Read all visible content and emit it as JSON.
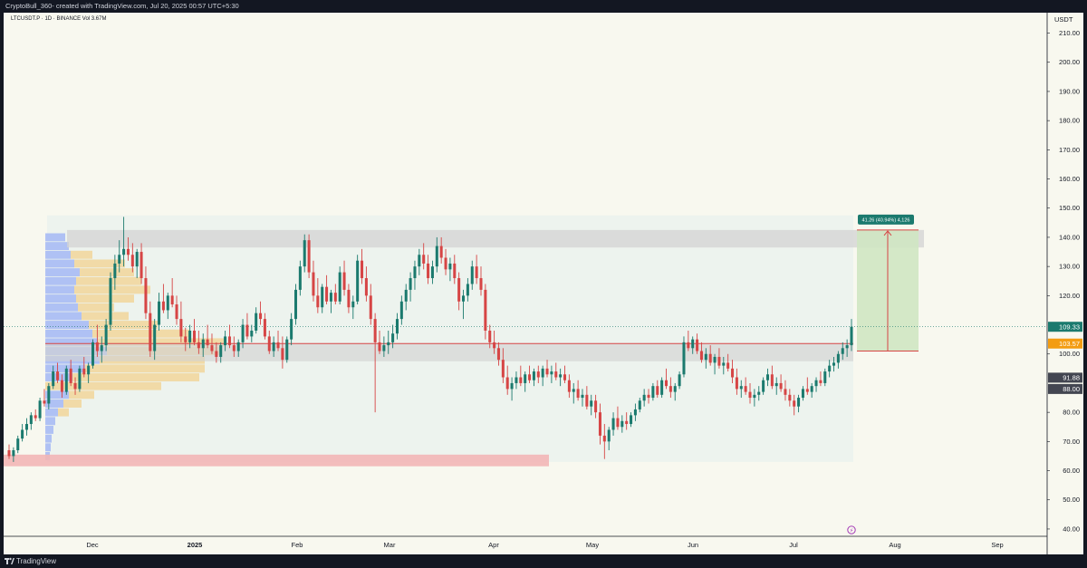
{
  "header": {
    "text": "CryptoBull_360- created with TradingView.com, Jul 20, 2025 00:57 UTC+5:30"
  },
  "footer": {
    "brand": "TradingView"
  },
  "symbol_line": "LTCUSDT.P · 1D · BINANCE  Vol 3.67M",
  "colors": {
    "up": "#1b7a6e",
    "down": "#d64545",
    "profile_blue": "#9fb4f5",
    "profile_orange": "#f2d28f",
    "target_green": "#cfe6c2",
    "support_band": "#d3d3d3",
    "bottom_band": "#f2b6b6",
    "price_tag_green": "#1b7a6e",
    "price_tag_orange": "#f39c12",
    "price_tag_gray": "#434651"
  },
  "icons": {
    "alert": "lightning-bolt-icon"
  },
  "chart_data": {
    "type": "candlestick",
    "currency_label": "USDT",
    "y_ticks": [
      40,
      50,
      60,
      70,
      80,
      90,
      100,
      110,
      120,
      130,
      140,
      150,
      160,
      170,
      180,
      190,
      200,
      210
    ],
    "y_tick_labels": [
      "40.00",
      "50.00",
      "60.00",
      "70.00",
      "80.00",
      "",
      "100.00",
      "",
      "120.00",
      "130.00",
      "140.00",
      "150.00",
      "160.00",
      "170.00",
      "180.00",
      "190.00",
      "200.00",
      "210.00"
    ],
    "ylim": [
      37.5,
      217
    ],
    "x_labels": [
      "Dec",
      "2025",
      "Feb",
      "Mar",
      "Apr",
      "May",
      "Jun",
      "Jul",
      "Aug",
      "Sep"
    ],
    "price_tags": [
      {
        "label": "109.33",
        "value": 109.33,
        "color": "green"
      },
      {
        "label": "103.57",
        "value": 103.57,
        "color": "orange"
      },
      {
        "label": "91.88",
        "value": 91.88,
        "color": "gray"
      },
      {
        "label": "88.00",
        "value": 88.0,
        "color": "gray"
      }
    ],
    "measure_label": "41.26 (40.94%) 4,126",
    "zones": {
      "resistance": [
        136.5,
        142.5
      ],
      "support": [
        97.5,
        103.5
      ],
      "bottom": [
        61.5,
        65.5
      ],
      "target": [
        101.0,
        142.5
      ],
      "range_box": [
        63.0,
        147.5
      ]
    },
    "current_price": 109.33,
    "horizontal_line": 103.57,
    "candles": [
      [
        67,
        69,
        64,
        65
      ],
      [
        65,
        68,
        63,
        67
      ],
      [
        67,
        72,
        66,
        71
      ],
      [
        71,
        76,
        70,
        74
      ],
      [
        74,
        78,
        72,
        76
      ],
      [
        76,
        80,
        74,
        79
      ],
      [
        79,
        81,
        77,
        78
      ],
      [
        78,
        85,
        77,
        84
      ],
      [
        84,
        88,
        82,
        83
      ],
      [
        83,
        90,
        81,
        89
      ],
      [
        89,
        96,
        88,
        94
      ],
      [
        94,
        97,
        90,
        91
      ],
      [
        91,
        93,
        85,
        87
      ],
      [
        87,
        96,
        86,
        95
      ],
      [
        95,
        98,
        89,
        90
      ],
      [
        90,
        92,
        86,
        88
      ],
      [
        88,
        96,
        87,
        95
      ],
      [
        95,
        99,
        92,
        93
      ],
      [
        93,
        97,
        90,
        96
      ],
      [
        96,
        105,
        95,
        104
      ],
      [
        104,
        110,
        99,
        101
      ],
      [
        101,
        106,
        97,
        103
      ],
      [
        103,
        112,
        101,
        110
      ],
      [
        110,
        128,
        108,
        126
      ],
      [
        126,
        134,
        122,
        131
      ],
      [
        131,
        139,
        128,
        134
      ],
      [
        134,
        147,
        130,
        136
      ],
      [
        136,
        140,
        132,
        134
      ],
      [
        134,
        138,
        128,
        130
      ],
      [
        130,
        136,
        126,
        135
      ],
      [
        135,
        138,
        124,
        126
      ],
      [
        126,
        130,
        112,
        114
      ],
      [
        114,
        118,
        99,
        101
      ],
      [
        101,
        112,
        98,
        110
      ],
      [
        110,
        121,
        108,
        118
      ],
      [
        118,
        124,
        114,
        115
      ],
      [
        115,
        121,
        112,
        120
      ],
      [
        120,
        126,
        116,
        117
      ],
      [
        117,
        120,
        110,
        112
      ],
      [
        112,
        118,
        104,
        106
      ],
      [
        106,
        109,
        101,
        104
      ],
      [
        104,
        110,
        102,
        108
      ],
      [
        108,
        112,
        103,
        104
      ],
      [
        104,
        108,
        100,
        102
      ],
      [
        102,
        107,
        99,
        105
      ],
      [
        105,
        110,
        102,
        103
      ],
      [
        103,
        107,
        100,
        101
      ],
      [
        101,
        104,
        97,
        99
      ],
      [
        99,
        104,
        97,
        103
      ],
      [
        103,
        108,
        101,
        106
      ],
      [
        106,
        110,
        102,
        103
      ],
      [
        103,
        106,
        99,
        101
      ],
      [
        101,
        105,
        99,
        104
      ],
      [
        104,
        112,
        102,
        110
      ],
      [
        110,
        114,
        105,
        106
      ],
      [
        106,
        110,
        104,
        108
      ],
      [
        108,
        116,
        107,
        114
      ],
      [
        114,
        118,
        110,
        112
      ],
      [
        112,
        114,
        105,
        106
      ],
      [
        106,
        108,
        100,
        101
      ],
      [
        101,
        106,
        99,
        104
      ],
      [
        104,
        108,
        101,
        102
      ],
      [
        102,
        106,
        95,
        98
      ],
      [
        98,
        106,
        97,
        105
      ],
      [
        105,
        114,
        103,
        112
      ],
      [
        112,
        124,
        110,
        122
      ],
      [
        122,
        132,
        120,
        130
      ],
      [
        130,
        141,
        128,
        139
      ],
      [
        139,
        141,
        126,
        128
      ],
      [
        128,
        132,
        118,
        120
      ],
      [
        120,
        126,
        114,
        116
      ],
      [
        116,
        124,
        114,
        123
      ],
      [
        123,
        127,
        117,
        118
      ],
      [
        118,
        122,
        114,
        121
      ],
      [
        121,
        124,
        117,
        118
      ],
      [
        118,
        130,
        117,
        128
      ],
      [
        128,
        132,
        120,
        122
      ],
      [
        122,
        124,
        114,
        116
      ],
      [
        116,
        120,
        112,
        118
      ],
      [
        118,
        134,
        117,
        132
      ],
      [
        132,
        136,
        124,
        126
      ],
      [
        126,
        130,
        118,
        120
      ],
      [
        120,
        124,
        110,
        112
      ],
      [
        112,
        114,
        80,
        104
      ],
      [
        104,
        108,
        100,
        101
      ],
      [
        101,
        106,
        99,
        103
      ],
      [
        103,
        108,
        100,
        104
      ],
      [
        104,
        110,
        102,
        107
      ],
      [
        107,
        114,
        105,
        112
      ],
      [
        112,
        120,
        110,
        118
      ],
      [
        118,
        124,
        115,
        122
      ],
      [
        122,
        128,
        118,
        126
      ],
      [
        126,
        132,
        122,
        130
      ],
      [
        130,
        136,
        127,
        134
      ],
      [
        134,
        138,
        129,
        131
      ],
      [
        131,
        134,
        124,
        126
      ],
      [
        126,
        132,
        124,
        130
      ],
      [
        130,
        140,
        128,
        137
      ],
      [
        137,
        140,
        131,
        133
      ],
      [
        133,
        136,
        127,
        129
      ],
      [
        129,
        133,
        125,
        131
      ],
      [
        131,
        134,
        124,
        126
      ],
      [
        126,
        128,
        115,
        118
      ],
      [
        118,
        122,
        112,
        120
      ],
      [
        120,
        126,
        118,
        124
      ],
      [
        124,
        132,
        122,
        130
      ],
      [
        130,
        134,
        124,
        126
      ],
      [
        126,
        130,
        120,
        122
      ],
      [
        122,
        124,
        105,
        108
      ],
      [
        108,
        110,
        102,
        104
      ],
      [
        104,
        108,
        100,
        102
      ],
      [
        102,
        104,
        96,
        98
      ],
      [
        98,
        102,
        90,
        92
      ],
      [
        92,
        96,
        86,
        88
      ],
      [
        88,
        92,
        84,
        90
      ],
      [
        90,
        94,
        88,
        92
      ],
      [
        92,
        96,
        89,
        90
      ],
      [
        90,
        94,
        87,
        93
      ],
      [
        93,
        96,
        90,
        91
      ],
      [
        91,
        95,
        89,
        94
      ],
      [
        94,
        96,
        90,
        92
      ],
      [
        92,
        96,
        89,
        95
      ],
      [
        95,
        98,
        92,
        93
      ],
      [
        93,
        96,
        90,
        94
      ],
      [
        94,
        97,
        91,
        92
      ],
      [
        92,
        95,
        89,
        93
      ],
      [
        93,
        96,
        90,
        91
      ],
      [
        91,
        93,
        85,
        87
      ],
      [
        87,
        90,
        83,
        88
      ],
      [
        88,
        91,
        84,
        85
      ],
      [
        85,
        88,
        82,
        86
      ],
      [
        86,
        89,
        81,
        82
      ],
      [
        82,
        86,
        79,
        84
      ],
      [
        84,
        86,
        78,
        80
      ],
      [
        80,
        83,
        69,
        72
      ],
      [
        72,
        76,
        64,
        70
      ],
      [
        70,
        75,
        67,
        74
      ],
      [
        74,
        80,
        72,
        78
      ],
      [
        78,
        82,
        74,
        75
      ],
      [
        75,
        79,
        73,
        77
      ],
      [
        77,
        80,
        74,
        76
      ],
      [
        76,
        80,
        75,
        79
      ],
      [
        79,
        83,
        77,
        81
      ],
      [
        81,
        85,
        80,
        84
      ],
      [
        84,
        88,
        82,
        86
      ],
      [
        86,
        88,
        83,
        85
      ],
      [
        85,
        90,
        84,
        89
      ],
      [
        89,
        91,
        85,
        86
      ],
      [
        86,
        92,
        85,
        91
      ],
      [
        91,
        95,
        88,
        89
      ],
      [
        89,
        92,
        85,
        87
      ],
      [
        87,
        90,
        84,
        89
      ],
      [
        89,
        94,
        88,
        93
      ],
      [
        93,
        106,
        92,
        104
      ],
      [
        104,
        108,
        101,
        102
      ],
      [
        102,
        106,
        100,
        105
      ],
      [
        105,
        107,
        100,
        101
      ],
      [
        101,
        104,
        97,
        98
      ],
      [
        98,
        102,
        95,
        100
      ],
      [
        100,
        103,
        96,
        97
      ],
      [
        97,
        100,
        93,
        99
      ],
      [
        99,
        102,
        95,
        96
      ],
      [
        96,
        99,
        93,
        97
      ],
      [
        97,
        100,
        94,
        95
      ],
      [
        95,
        98,
        90,
        92
      ],
      [
        92,
        95,
        86,
        88
      ],
      [
        88,
        91,
        85,
        89
      ],
      [
        89,
        92,
        86,
        87
      ],
      [
        87,
        90,
        83,
        85
      ],
      [
        85,
        88,
        82,
        86
      ],
      [
        86,
        89,
        84,
        87
      ],
      [
        87,
        92,
        86,
        91
      ],
      [
        91,
        95,
        89,
        93
      ],
      [
        93,
        96,
        88,
        89
      ],
      [
        89,
        92,
        86,
        90
      ],
      [
        90,
        93,
        87,
        88
      ],
      [
        88,
        91,
        84,
        86
      ],
      [
        86,
        88,
        82,
        84
      ],
      [
        84,
        86,
        79,
        82
      ],
      [
        82,
        86,
        80,
        85
      ],
      [
        85,
        89,
        84,
        88
      ],
      [
        88,
        92,
        86,
        87
      ],
      [
        87,
        90,
        85,
        89
      ],
      [
        89,
        92,
        87,
        91
      ],
      [
        91,
        94,
        89,
        90
      ],
      [
        90,
        95,
        89,
        94
      ],
      [
        94,
        98,
        92,
        96
      ],
      [
        96,
        99,
        94,
        97
      ],
      [
        97,
        101,
        95,
        100
      ],
      [
        100,
        104,
        98,
        102
      ],
      [
        102,
        105,
        99,
        103
      ],
      [
        103,
        112,
        101,
        109.33
      ]
    ],
    "volume_profile_blue": [
      [
        86,
        26
      ],
      [
        83,
        20
      ],
      [
        80,
        14
      ],
      [
        77,
        11
      ],
      [
        74,
        9
      ],
      [
        71,
        7
      ],
      [
        68,
        6
      ],
      [
        65,
        5
      ],
      [
        92,
        30
      ],
      [
        95,
        44
      ],
      [
        98,
        60
      ],
      [
        101,
        68
      ],
      [
        104,
        58
      ],
      [
        107,
        52
      ],
      [
        110,
        48
      ],
      [
        113,
        40
      ],
      [
        116,
        36
      ],
      [
        119,
        34
      ],
      [
        122,
        32
      ],
      [
        125,
        34
      ],
      [
        128,
        38
      ],
      [
        131,
        32
      ],
      [
        134,
        28
      ],
      [
        137,
        26
      ],
      [
        140,
        22
      ]
    ],
    "volume_profile_orange": [
      [
        86,
        14
      ],
      [
        83,
        10
      ],
      [
        80,
        6
      ],
      [
        89,
        64
      ],
      [
        92,
        70
      ],
      [
        95,
        66
      ],
      [
        98,
        58
      ],
      [
        101,
        62
      ],
      [
        104,
        70
      ],
      [
        107,
        54
      ],
      [
        110,
        38
      ],
      [
        113,
        26
      ],
      [
        116,
        20
      ],
      [
        119,
        32
      ],
      [
        122,
        42
      ],
      [
        125,
        36
      ],
      [
        128,
        30
      ],
      [
        131,
        28
      ],
      [
        134,
        12
      ]
    ]
  }
}
